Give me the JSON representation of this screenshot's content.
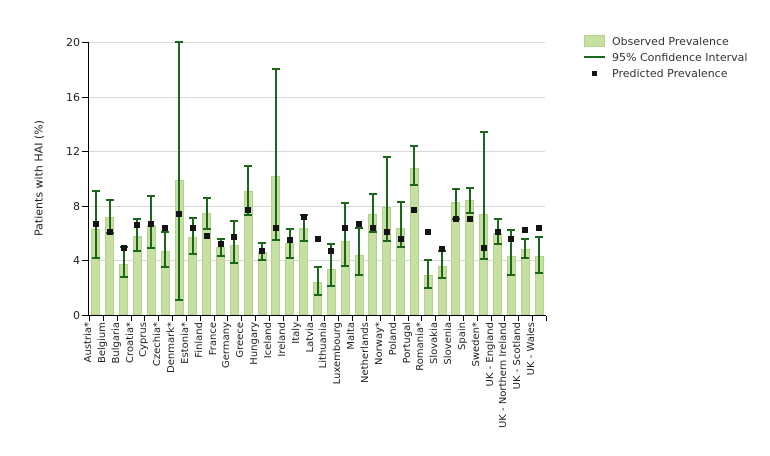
{
  "chart_data": {
    "type": "bar",
    "title": "",
    "ylabel": "Patients with HAI (%)",
    "xlabel": "",
    "ylim": [
      0,
      20
    ],
    "yticks": [
      0,
      4,
      8,
      12,
      16,
      20
    ],
    "grid": "horizontal",
    "legend_position": "top-right",
    "legend": [
      {
        "label": "Observed Prevalence",
        "swatch": "green-bar-swatch"
      },
      {
        "label": "95% Confidence Interval",
        "swatch": "green-line-swatch"
      },
      {
        "label": "Predicted Prevalence",
        "swatch": "black-square-swatch"
      }
    ],
    "categories": [
      "Austria*",
      "Belgium",
      "Bulgaria",
      "Croatia*",
      "Cyprus",
      "Czechia*",
      "Denmark*",
      "Estonia*",
      "Finland",
      "France",
      "Germany",
      "Greece",
      "Hungary",
      "Iceland",
      "Ireland",
      "Italy",
      "Latvia",
      "Lithuania",
      "Luxembourg",
      "Malta",
      "Netherlands",
      "Norway*",
      "Poland",
      "Portugal",
      "Romania*",
      "Slovakia",
      "Slovenia",
      "Spain",
      "Sweden*",
      "UK - England",
      "UK - Northern Ireland",
      "UK - Scotland",
      "UK - Wales"
    ],
    "series": [
      {
        "name": "Observed Prevalence",
        "type": "bar",
        "values": [
          6.3,
          7.2,
          3.7,
          5.8,
          6.6,
          4.7,
          9.9,
          5.7,
          7.5,
          5.0,
          5.1,
          9.1,
          4.6,
          10.2,
          5.3,
          6.4,
          2.4,
          3.4,
          5.4,
          4.4,
          7.4,
          7.9,
          6.4,
          10.8,
          2.9,
          3.6,
          8.3,
          8.4,
          7.4,
          6.0,
          4.3,
          4.8,
          4.3
        ]
      },
      {
        "name": "95% Confidence Interval",
        "type": "errorbar",
        "low": [
          4.2,
          6.0,
          2.8,
          4.7,
          4.9,
          3.5,
          1.1,
          4.5,
          6.3,
          4.3,
          3.8,
          7.3,
          4.0,
          5.5,
          4.2,
          5.4,
          1.5,
          2.1,
          3.6,
          2.9,
          6.1,
          5.4,
          5.0,
          9.5,
          2.0,
          2.7,
          7.0,
          7.5,
          4.1,
          5.2,
          2.9,
          4.2,
          3.1
        ],
        "high": [
          9.1,
          8.4,
          5.0,
          7.0,
          8.7,
          6.1,
          20.0,
          7.1,
          8.6,
          5.6,
          6.9,
          10.9,
          5.3,
          18.0,
          6.3,
          7.3,
          3.5,
          5.2,
          8.2,
          6.4,
          8.9,
          11.6,
          8.3,
          12.4,
          4.0,
          4.7,
          9.2,
          9.3,
          13.4,
          7.0,
          6.2,
          5.6,
          5.7
        ]
      },
      {
        "name": "Predicted Prevalence",
        "type": "scatter",
        "values": [
          6.7,
          6.1,
          4.9,
          6.6,
          6.7,
          6.4,
          7.4,
          6.4,
          5.8,
          5.2,
          5.7,
          7.7,
          4.7,
          6.4,
          5.5,
          7.2,
          5.6,
          4.7,
          6.4,
          6.7,
          6.4,
          6.1,
          5.6,
          7.7,
          6.1,
          4.8,
          7.0,
          7.0,
          4.9,
          6.1,
          5.6,
          6.2,
          6.4
        ]
      }
    ]
  },
  "colors": {
    "bar_fill": "#c6e0a2",
    "bar_border": "#b5d18c",
    "ci_line": "#1c661c",
    "predicted_marker": "#141414",
    "gridline": "#d9d9d9",
    "axis": "#000000",
    "text": "#222222",
    "background": "#ffffff"
  }
}
